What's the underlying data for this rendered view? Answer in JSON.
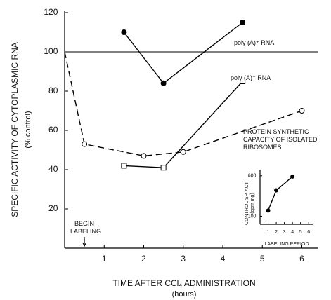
{
  "chart_data": [
    {
      "type": "line",
      "y_label": "SPECIFIC ACTIVITY OF CYTOPLASMIC RNA",
      "y_label_unit": "(% control)",
      "x_label": "TIME AFTER CCl₄ ADMINISTRATION",
      "x_label_unit": "(hours)",
      "xlim": [
        0,
        6.4
      ],
      "xticks": [
        1,
        2,
        3,
        4,
        5,
        6
      ],
      "ylim": [
        0,
        120
      ],
      "yticks": [
        20,
        40,
        60,
        80,
        100,
        120
      ],
      "reference_line": 100,
      "annotation": {
        "text": "BEGIN LABELING",
        "x": 0.5
      },
      "series": [
        {
          "name": "poly (A)⁺ RNA",
          "color": "#000000",
          "marker": "filled-circle",
          "line_style": "solid",
          "x": [
            1.5,
            2.5,
            4.5
          ],
          "values": [
            110,
            84,
            115
          ]
        },
        {
          "name": "poly (A)⁻ RNA",
          "color": "#000000",
          "marker": "open-square",
          "line_style": "solid",
          "x": [
            1.5,
            2.5,
            4.5
          ],
          "values": [
            42,
            41,
            85
          ]
        },
        {
          "name": "PROTEIN SYNTHETIC CAPACITY OF ISOLATED RIBOSOMES",
          "color": "#000000",
          "marker": "open-circle",
          "line_style": "dashed",
          "x": [
            0,
            0.5,
            2,
            3,
            6
          ],
          "values": [
            100,
            53,
            47,
            49,
            70
          ]
        }
      ]
    },
    {
      "type": "line",
      "y_label": "CONTROL SP. ACT",
      "y_label_unit": "(cpm mg)",
      "x_label": "LABELING PERIOD",
      "xlim": [
        0,
        6.5
      ],
      "xticks": [
        1,
        2,
        3,
        4,
        5,
        6
      ],
      "ylim": [
        0,
        650
      ],
      "yticks": [
        100,
        600
      ],
      "series": [
        {
          "color": "#000000",
          "marker": "filled-circle",
          "line_style": "solid",
          "x": [
            1,
            2,
            4
          ],
          "values": [
            170,
            420,
            590
          ]
        }
      ]
    }
  ]
}
